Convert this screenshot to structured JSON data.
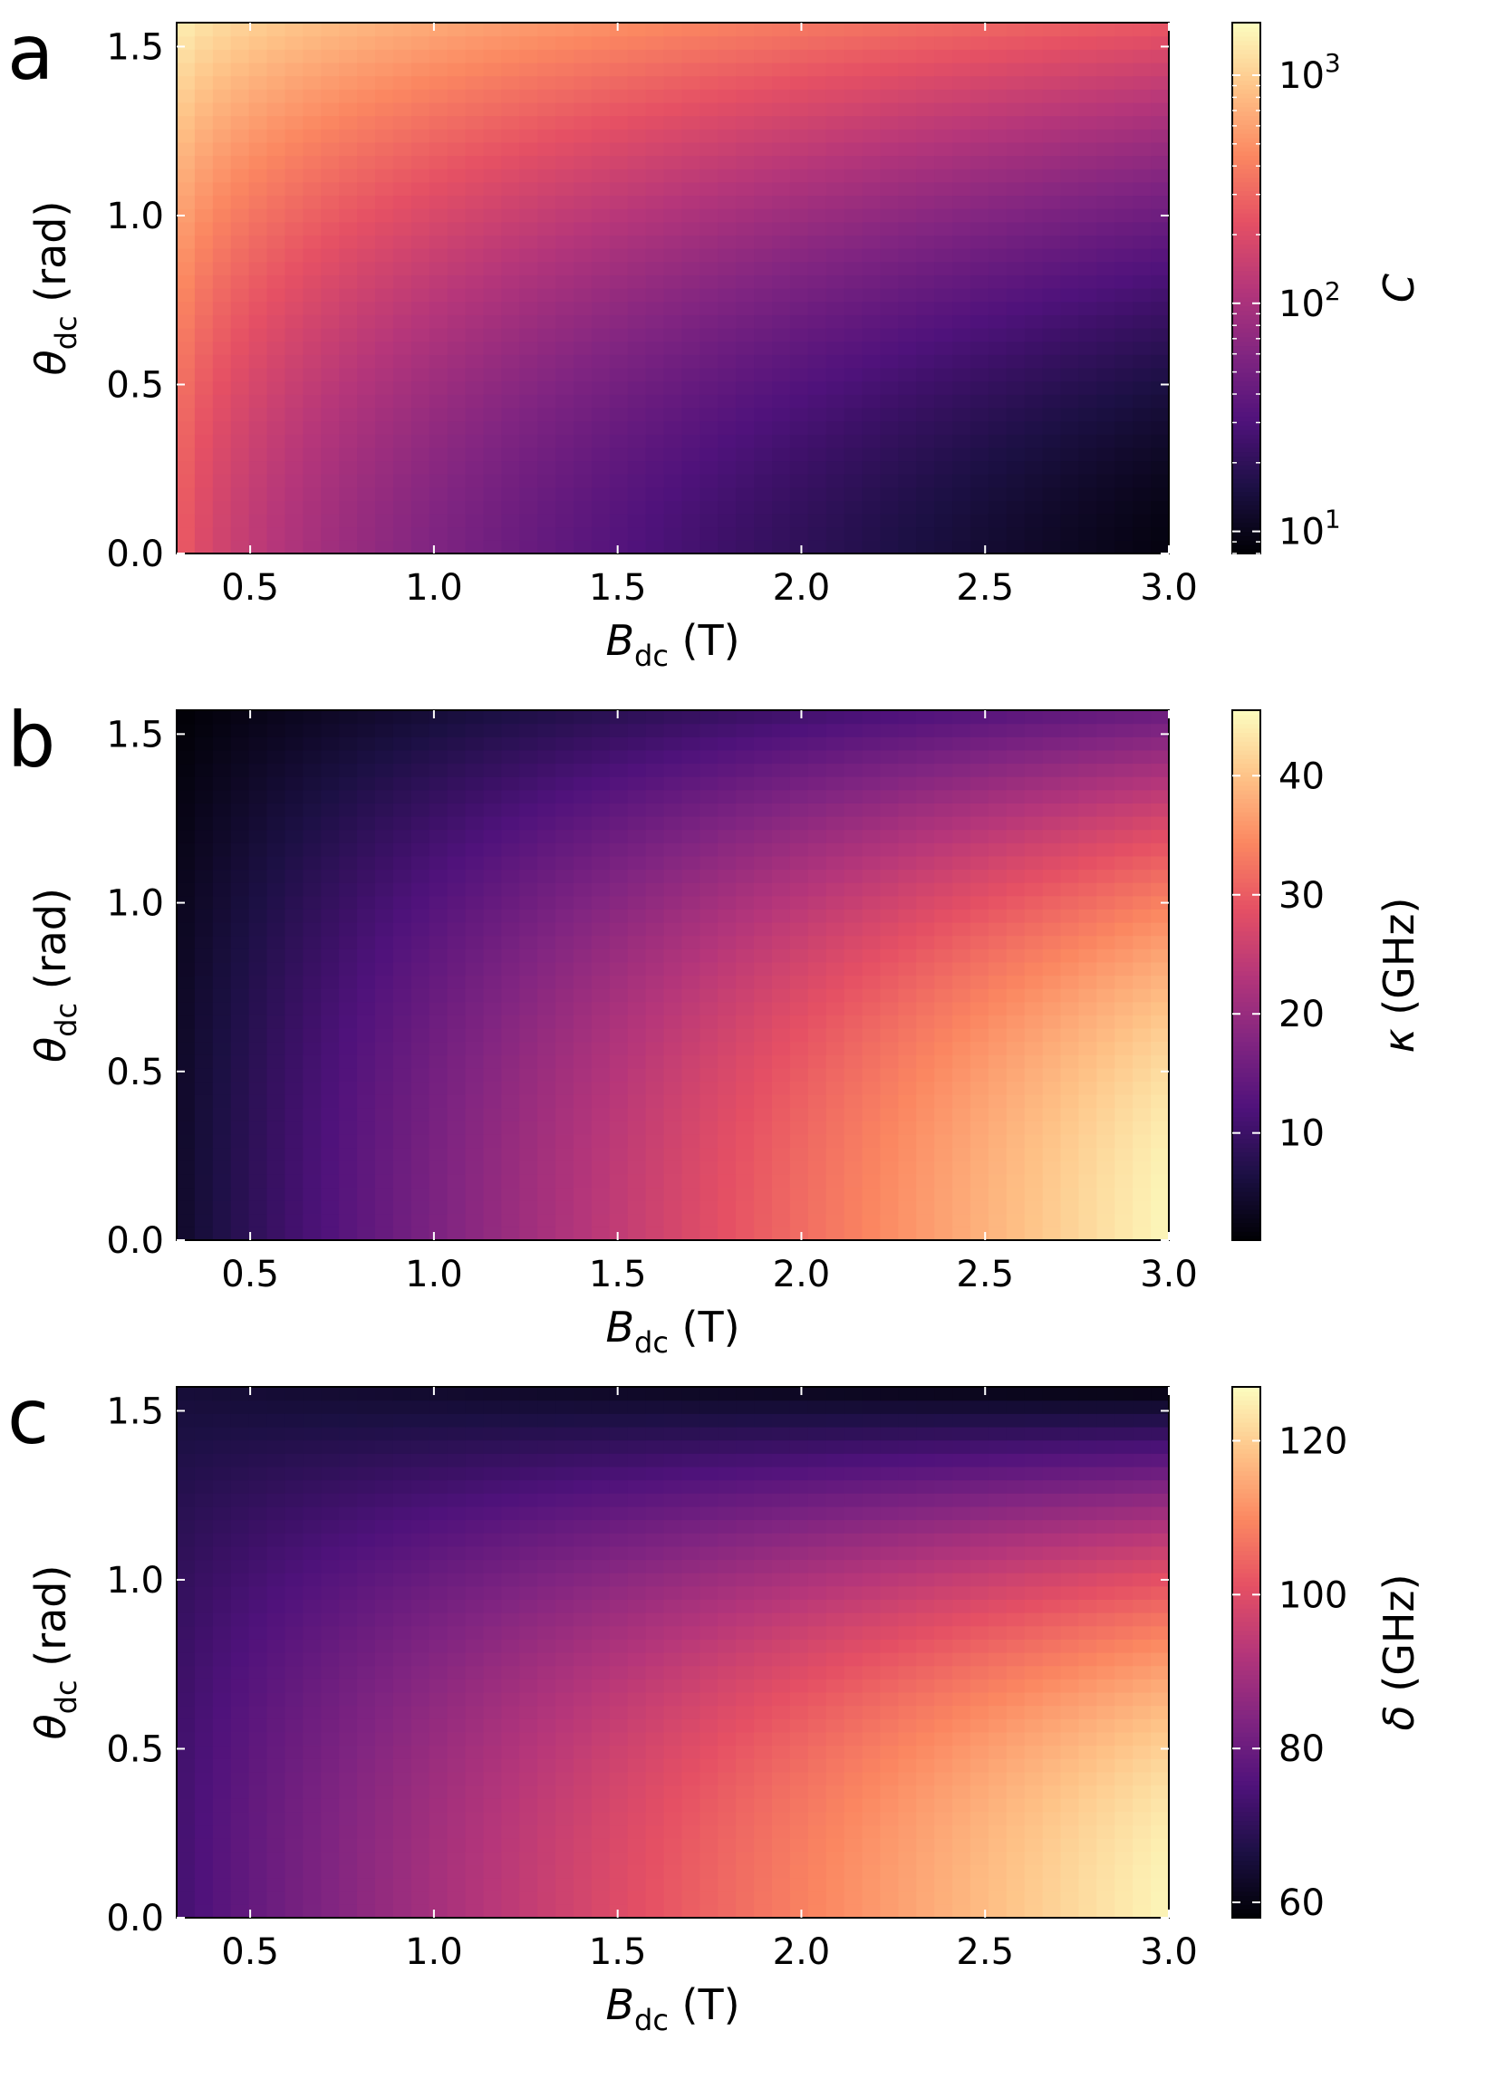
{
  "figure": {
    "colormap": "magma",
    "colormap_stops": [
      "#000004",
      "#1c1044",
      "#4f127b",
      "#812581",
      "#b5367a",
      "#e55064",
      "#fb8761",
      "#fec287",
      "#fcfdbf"
    ]
  },
  "chart_data": [
    {
      "type": "heatmap",
      "panel_label": "a",
      "x_label_symbol": "B",
      "x_label_sub": "dc",
      "x_label_unit": " (T)",
      "y_label_symbol": "θ",
      "y_label_sub": "dc",
      "y_label_unit": " (rad)",
      "x_range": [
        0.3,
        3.0
      ],
      "y_range": [
        0.0,
        1.5708
      ],
      "x_ticks": [
        0.5,
        1.0,
        1.5,
        2.0,
        2.5,
        3.0
      ],
      "x_tick_labels": [
        "0.5",
        "1.0",
        "1.5",
        "2.0",
        "2.5",
        "3.0"
      ],
      "y_ticks": [
        0.0,
        0.5,
        1.0,
        1.5
      ],
      "y_tick_labels": [
        "0.0",
        "0.5",
        "1.0",
        "1.5"
      ],
      "colorbar": {
        "label": "C",
        "scale": "log",
        "range": [
          8,
          1700
        ],
        "ticks": [
          10,
          100,
          1000
        ],
        "tick_base": "10",
        "tick_exponents": [
          "1",
          "2",
          "3"
        ]
      },
      "grid_resolution": [
        55,
        40
      ],
      "approx_values": {
        "at_Bmin_theta_max": 1600,
        "at_Bmin_theta_0": 320,
        "at_Bmax_theta_max": 250,
        "at_Bmax_theta_0": 9
      }
    },
    {
      "type": "heatmap",
      "panel_label": "b",
      "x_label_symbol": "B",
      "x_label_sub": "dc",
      "x_label_unit": " (T)",
      "y_label_symbol": "θ",
      "y_label_sub": "dc",
      "y_label_unit": " (rad)",
      "x_range": [
        0.3,
        3.0
      ],
      "y_range": [
        0.0,
        1.5708
      ],
      "x_ticks": [
        0.5,
        1.0,
        1.5,
        2.0,
        2.5,
        3.0
      ],
      "x_tick_labels": [
        "0.5",
        "1.0",
        "1.5",
        "2.0",
        "2.5",
        "3.0"
      ],
      "y_ticks": [
        0.0,
        0.5,
        1.0,
        1.5
      ],
      "y_tick_labels": [
        "0.0",
        "0.5",
        "1.0",
        "1.5"
      ],
      "colorbar": {
        "label": "κ (GHz)",
        "scale": "linear",
        "range": [
          1,
          45.5
        ],
        "ticks": [
          10,
          20,
          30,
          40
        ],
        "tick_labels": [
          "10",
          "20",
          "30",
          "40"
        ]
      },
      "grid_resolution": [
        55,
        40
      ],
      "approx_values": {
        "at_Bmin_theta_max": 1,
        "at_Bmin_theta_0": 4,
        "at_Bmax_theta_max": 15,
        "at_Bmax_theta_0": 45
      }
    },
    {
      "type": "heatmap",
      "panel_label": "c",
      "x_label_symbol": "B",
      "x_label_sub": "dc",
      "x_label_unit": " (T)",
      "y_label_symbol": "θ",
      "y_label_sub": "dc",
      "y_label_unit": " (rad)",
      "x_range": [
        0.3,
        3.0
      ],
      "y_range": [
        0.0,
        1.5708
      ],
      "x_ticks": [
        0.5,
        1.0,
        1.5,
        2.0,
        2.5,
        3.0
      ],
      "x_tick_labels": [
        "0.5",
        "1.0",
        "1.5",
        "2.0",
        "2.5",
        "3.0"
      ],
      "y_ticks": [
        0.0,
        0.5,
        1.0,
        1.5
      ],
      "y_tick_labels": [
        "0.0",
        "0.5",
        "1.0",
        "1.5"
      ],
      "colorbar": {
        "label": "δ (GHz)",
        "scale": "linear",
        "range": [
          58,
          127
        ],
        "ticks": [
          60,
          80,
          100,
          120
        ],
        "tick_labels": [
          "60",
          "80",
          "100",
          "120"
        ]
      },
      "grid_resolution": [
        55,
        40
      ],
      "approx_values": {
        "at_Bmin_theta_max": 65,
        "at_Bmin_theta_0": 73,
        "at_Bmax_theta_max": 59,
        "at_Bmax_theta_0": 126
      }
    }
  ]
}
